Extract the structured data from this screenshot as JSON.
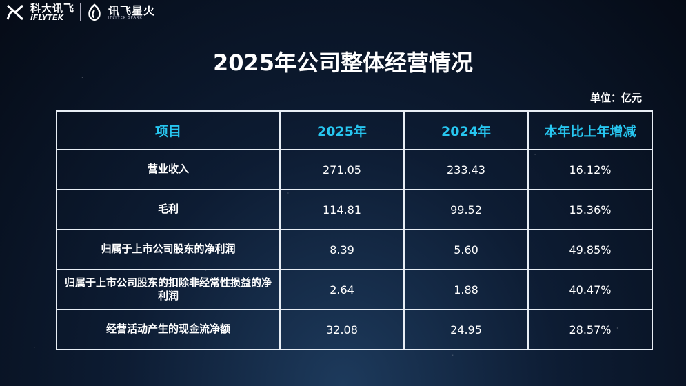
{
  "header": {
    "logo_cn": "科大讯飞",
    "logo_en": "iFLYTEK",
    "spark_cn": "讯飞星火",
    "spark_en": "IFLYTEK SPARK"
  },
  "title": "2025年公司整体经营情况",
  "unit": "单位：亿元",
  "table": {
    "columns": [
      "项目",
      "2025年",
      "2024年",
      "本年比上年增减"
    ],
    "rows": [
      [
        "营业收入",
        "271.05",
        "233.43",
        "16.12%"
      ],
      [
        "毛利",
        "114.81",
        "99.52",
        "15.36%"
      ],
      [
        "归属于上市公司股东的净利润",
        "8.39",
        "5.60",
        "49.85%"
      ],
      [
        "归属于上市公司股东的扣除非经常性损益的净利润",
        "2.64",
        "1.88",
        "40.47%"
      ],
      [
        "经营活动产生的现金流净额",
        "32.08",
        "24.95",
        "28.57%"
      ]
    ]
  }
}
